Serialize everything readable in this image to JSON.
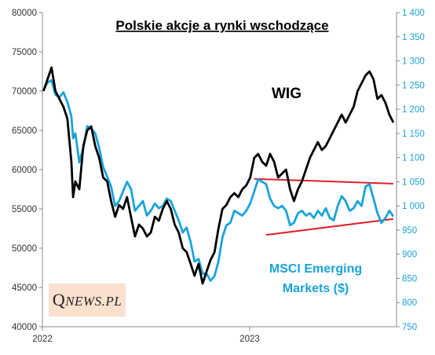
{
  "chart_data": {
    "type": "line",
    "title": "Polskie  akcje a rynki wschodzące",
    "x_ticks": [
      "2022",
      "2023"
    ],
    "y_left": {
      "min": 40000,
      "max": 80000,
      "ticks": [
        "40000",
        "45000",
        "50000",
        "55000",
        "60000",
        "65000",
        "70000",
        "75000",
        "80000"
      ]
    },
    "y_right": {
      "min": 750,
      "max": 1400,
      "ticks": [
        "750",
        "800",
        "850",
        "900",
        "950",
        "1 000",
        "1 050",
        "1 100",
        "1 150",
        "1 200",
        "1 250",
        "1 300",
        "1 350",
        "1 400"
      ]
    },
    "series": [
      {
        "name": "WIG",
        "axis": "left",
        "color": "#000000",
        "points": [
          [
            "2022-01-03",
            70000
          ],
          [
            "2022-01-10",
            71500
          ],
          [
            "2022-01-17",
            73000
          ],
          [
            "2022-01-24",
            70000
          ],
          [
            "2022-01-31",
            69000
          ],
          [
            "2022-02-07",
            68000
          ],
          [
            "2022-02-14",
            66500
          ],
          [
            "2022-02-21",
            61000
          ],
          [
            "2022-02-24",
            56500
          ],
          [
            "2022-02-28",
            58500
          ],
          [
            "2022-03-07",
            57500
          ],
          [
            "2022-03-14",
            63000
          ],
          [
            "2022-03-21",
            65000
          ],
          [
            "2022-03-28",
            65500
          ],
          [
            "2022-04-04",
            63000
          ],
          [
            "2022-04-11",
            61500
          ],
          [
            "2022-04-18",
            59000
          ],
          [
            "2022-04-25",
            58500
          ],
          [
            "2022-05-02",
            56000
          ],
          [
            "2022-05-09",
            54000
          ],
          [
            "2022-05-16",
            55500
          ],
          [
            "2022-05-23",
            55000
          ],
          [
            "2022-05-30",
            56500
          ],
          [
            "2022-06-06",
            54000
          ],
          [
            "2022-06-13",
            51500
          ],
          [
            "2022-06-20",
            53000
          ],
          [
            "2022-06-27",
            52500
          ],
          [
            "2022-07-04",
            51500
          ],
          [
            "2022-07-11",
            52000
          ],
          [
            "2022-07-18",
            54000
          ],
          [
            "2022-07-25",
            53500
          ],
          [
            "2022-08-01",
            55000
          ],
          [
            "2022-08-08",
            56000
          ],
          [
            "2022-08-15",
            55000
          ],
          [
            "2022-08-22",
            53000
          ],
          [
            "2022-08-29",
            52000
          ],
          [
            "2022-09-05",
            50000
          ],
          [
            "2022-09-12",
            49500
          ],
          [
            "2022-09-19",
            48000
          ],
          [
            "2022-09-26",
            46500
          ],
          [
            "2022-10-03",
            48000
          ],
          [
            "2022-10-10",
            45500
          ],
          [
            "2022-10-17",
            47000
          ],
          [
            "2022-10-24",
            48500
          ],
          [
            "2022-10-31",
            49500
          ],
          [
            "2022-11-07",
            52500
          ],
          [
            "2022-11-14",
            55000
          ],
          [
            "2022-11-21",
            55500
          ],
          [
            "2022-11-28",
            56500
          ],
          [
            "2022-12-05",
            57000
          ],
          [
            "2022-12-12",
            56500
          ],
          [
            "2022-12-19",
            57500
          ],
          [
            "2022-12-26",
            58000
          ],
          [
            "2023-01-02",
            59000
          ],
          [
            "2023-01-09",
            61500
          ],
          [
            "2023-01-16",
            62000
          ],
          [
            "2023-01-23",
            61000
          ],
          [
            "2023-01-30",
            60500
          ],
          [
            "2023-02-06",
            62000
          ],
          [
            "2023-02-13",
            61000
          ],
          [
            "2023-02-20",
            59000
          ],
          [
            "2023-02-27",
            59500
          ],
          [
            "2023-03-06",
            60000
          ],
          [
            "2023-03-13",
            57500
          ],
          [
            "2023-03-20",
            56000
          ],
          [
            "2023-03-27",
            57500
          ],
          [
            "2023-04-03",
            58500
          ],
          [
            "2023-04-10",
            60000
          ],
          [
            "2023-04-17",
            61500
          ],
          [
            "2023-04-24",
            62500
          ],
          [
            "2023-05-01",
            63500
          ],
          [
            "2023-05-08",
            62500
          ],
          [
            "2023-05-15",
            63000
          ],
          [
            "2023-05-22",
            64000
          ],
          [
            "2023-05-29",
            65000
          ],
          [
            "2023-06-05",
            66000
          ],
          [
            "2023-06-12",
            67000
          ],
          [
            "2023-06-19",
            66000
          ],
          [
            "2023-06-26",
            67000
          ],
          [
            "2023-07-03",
            68000
          ],
          [
            "2023-07-10",
            70000
          ],
          [
            "2023-07-17",
            71000
          ],
          [
            "2023-07-24",
            72000
          ],
          [
            "2023-07-31",
            72500
          ],
          [
            "2023-08-07",
            71500
          ],
          [
            "2023-08-14",
            69000
          ],
          [
            "2023-08-21",
            69500
          ],
          [
            "2023-08-28",
            68500
          ],
          [
            "2023-09-04",
            67000
          ],
          [
            "2023-09-11",
            66000
          ]
        ]
      },
      {
        "name": "MSCI Emerging Markets ($)",
        "axis": "right",
        "color": "#1aa3d9",
        "points": [
          [
            "2022-01-03",
            1240
          ],
          [
            "2022-01-10",
            1255
          ],
          [
            "2022-01-17",
            1260
          ],
          [
            "2022-01-24",
            1230
          ],
          [
            "2022-01-31",
            1225
          ],
          [
            "2022-02-07",
            1235
          ],
          [
            "2022-02-14",
            1215
          ],
          [
            "2022-02-21",
            1185
          ],
          [
            "2022-02-24",
            1140
          ],
          [
            "2022-02-28",
            1150
          ],
          [
            "2022-03-07",
            1090
          ],
          [
            "2022-03-14",
            1120
          ],
          [
            "2022-03-21",
            1165
          ],
          [
            "2022-03-28",
            1160
          ],
          [
            "2022-04-04",
            1150
          ],
          [
            "2022-04-11",
            1120
          ],
          [
            "2022-04-18",
            1080
          ],
          [
            "2022-04-25",
            1060
          ],
          [
            "2022-05-02",
            1040
          ],
          [
            "2022-05-09",
            1000
          ],
          [
            "2022-05-16",
            1010
          ],
          [
            "2022-05-23",
            1030
          ],
          [
            "2022-05-30",
            1050
          ],
          [
            "2022-06-06",
            1035
          ],
          [
            "2022-06-13",
            990
          ],
          [
            "2022-06-20",
            1000
          ],
          [
            "2022-06-27",
            1010
          ],
          [
            "2022-07-04",
            980
          ],
          [
            "2022-07-11",
            990
          ],
          [
            "2022-07-18",
            1005
          ],
          [
            "2022-07-25",
            995
          ],
          [
            "2022-08-01",
            1000
          ],
          [
            "2022-08-08",
            1015
          ],
          [
            "2022-08-15",
            1010
          ],
          [
            "2022-08-22",
            990
          ],
          [
            "2022-08-29",
            970
          ],
          [
            "2022-09-05",
            945
          ],
          [
            "2022-09-12",
            955
          ],
          [
            "2022-09-19",
            925
          ],
          [
            "2022-09-26",
            885
          ],
          [
            "2022-10-03",
            890
          ],
          [
            "2022-10-10",
            860
          ],
          [
            "2022-10-17",
            860
          ],
          [
            "2022-10-24",
            845
          ],
          [
            "2022-10-31",
            855
          ],
          [
            "2022-11-07",
            885
          ],
          [
            "2022-11-14",
            935
          ],
          [
            "2022-11-21",
            960
          ],
          [
            "2022-11-28",
            965
          ],
          [
            "2022-12-05",
            990
          ],
          [
            "2022-12-12",
            985
          ],
          [
            "2022-12-19",
            980
          ],
          [
            "2022-12-26",
            990
          ],
          [
            "2023-01-02",
            1005
          ],
          [
            "2023-01-09",
            1030
          ],
          [
            "2023-01-16",
            1055
          ],
          [
            "2023-01-23",
            1050
          ],
          [
            "2023-01-30",
            1045
          ],
          [
            "2023-02-06",
            1015
          ],
          [
            "2023-02-13",
            1000
          ],
          [
            "2023-02-20",
            995
          ],
          [
            "2023-02-27",
            1000
          ],
          [
            "2023-03-06",
            990
          ],
          [
            "2023-03-13",
            960
          ],
          [
            "2023-03-20",
            965
          ],
          [
            "2023-03-27",
            985
          ],
          [
            "2023-04-03",
            990
          ],
          [
            "2023-04-10",
            980
          ],
          [
            "2023-04-17",
            985
          ],
          [
            "2023-04-24",
            975
          ],
          [
            "2023-05-01",
            990
          ],
          [
            "2023-05-08",
            980
          ],
          [
            "2023-05-15",
            995
          ],
          [
            "2023-05-22",
            975
          ],
          [
            "2023-05-29",
            970
          ],
          [
            "2023-06-05",
            1000
          ],
          [
            "2023-06-12",
            1020
          ],
          [
            "2023-06-19",
            1010
          ],
          [
            "2023-06-26",
            990
          ],
          [
            "2023-07-03",
            995
          ],
          [
            "2023-07-10",
            1010
          ],
          [
            "2023-07-17",
            1000
          ],
          [
            "2023-07-24",
            1040
          ],
          [
            "2023-07-31",
            1045
          ],
          [
            "2023-08-07",
            1015
          ],
          [
            "2023-08-14",
            985
          ],
          [
            "2023-08-21",
            965
          ],
          [
            "2023-08-28",
            975
          ],
          [
            "2023-09-04",
            990
          ],
          [
            "2023-09-11",
            978
          ]
        ]
      }
    ],
    "trendlines": [
      {
        "color": "#e0202a",
        "axis": "right",
        "points": [
          [
            "2023-01-09",
            1056
          ],
          [
            "2023-09-11",
            1046
          ]
        ]
      },
      {
        "color": "#e0202a",
        "axis": "right",
        "points": [
          [
            "2023-01-30",
            940
          ],
          [
            "2023-09-11",
            973
          ]
        ]
      }
    ],
    "annotations": {
      "wig_label": "WIG",
      "msci_line1": "MSCI Emerging",
      "msci_line2": "Markets ($)"
    },
    "logo": {
      "q": "Q",
      "rest": "NEWS.PL"
    }
  }
}
